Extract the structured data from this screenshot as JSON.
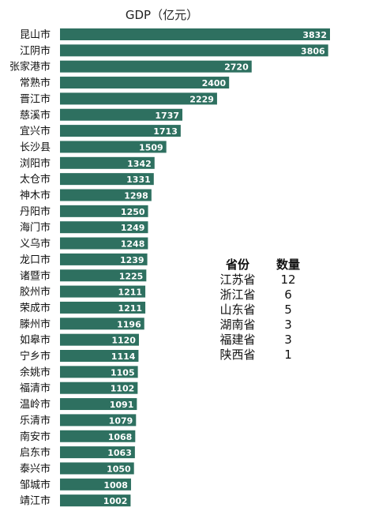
{
  "chart_data": {
    "type": "bar",
    "orientation": "horizontal",
    "title": "GDP（亿元）",
    "bar_color": "#2e7060",
    "label_color": "#ffffff",
    "categories": [
      "昆山市",
      "江阴市",
      "张家港市",
      "常熟市",
      "晋江市",
      "慈溪市",
      "宜兴市",
      "长沙县",
      "浏阳市",
      "太仓市",
      "神木市",
      "丹阳市",
      "海门市",
      "义乌市",
      "龙口市",
      "诸暨市",
      "胶州市",
      "荣成市",
      "滕州市",
      "如皋市",
      "宁乡市",
      "余姚市",
      "福清市",
      "温岭市",
      "乐清市",
      "南安市",
      "启东市",
      "泰兴市",
      "邹城市",
      "靖江市"
    ],
    "values": [
      3832,
      3806,
      2720,
      2400,
      2229,
      1737,
      1713,
      1509,
      1342,
      1331,
      1298,
      1250,
      1249,
      1248,
      1239,
      1225,
      1211,
      1211,
      1196,
      1120,
      1114,
      1105,
      1102,
      1091,
      1079,
      1068,
      1063,
      1050,
      1008,
      1002
    ],
    "xlim": [
      0,
      3900
    ],
    "grid": false,
    "legend": "none"
  },
  "summary_table": {
    "headers": [
      "省份",
      "数量"
    ],
    "rows": [
      [
        "江苏省",
        "12"
      ],
      [
        "浙江省",
        "6"
      ],
      [
        "山东省",
        "5"
      ],
      [
        "湖南省",
        "3"
      ],
      [
        "福建省",
        "3"
      ],
      [
        "陕西省",
        "1"
      ]
    ]
  }
}
